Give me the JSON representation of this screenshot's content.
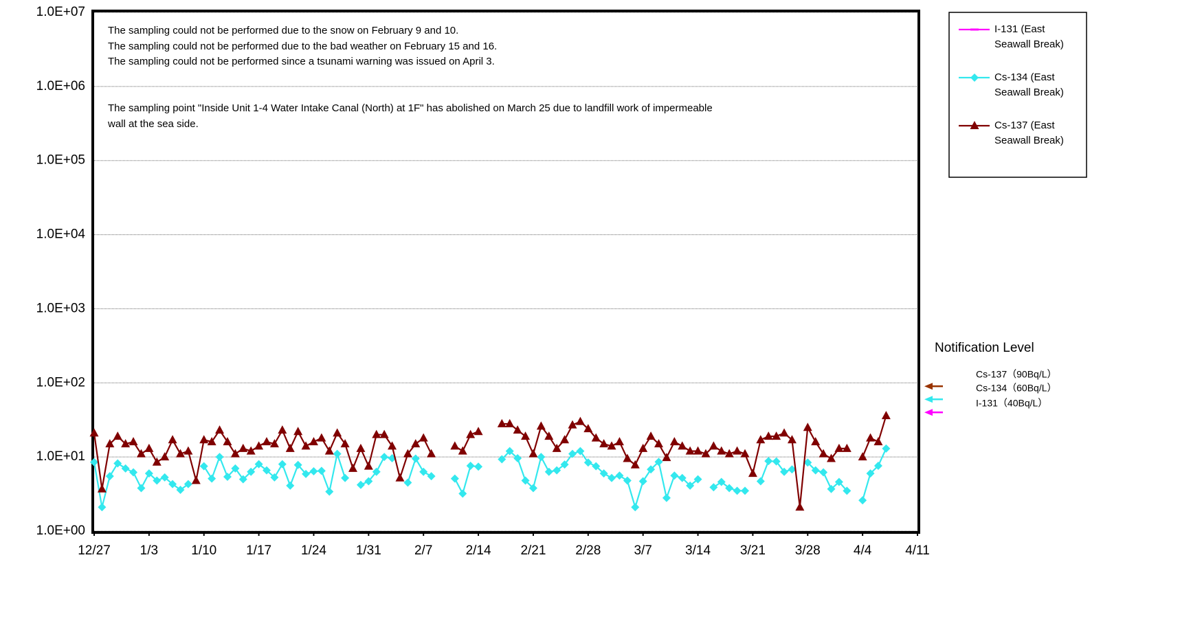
{
  "chart_data": {
    "type": "line",
    "log": true,
    "grid": true,
    "annotations": [
      "The sampling could not be performed due to the snow on February 9 and 10.",
      "The sampling could not be performed due to the bad weather on February 15 and 16.",
      "The sampling could not be performed since a tsunami warning was issued on April 3.",
      "The sampling point \"Inside Unit 1-4 Water Intake Canal (North) at 1F\" has abolished on March 25 due to landfill work of impermeable",
      "wall at the sea side."
    ],
    "categories": [
      "12/27",
      null,
      null,
      null,
      null,
      null,
      null,
      "1/3",
      null,
      null,
      null,
      null,
      null,
      null,
      "1/10",
      null,
      null,
      null,
      null,
      null,
      null,
      "1/17",
      null,
      null,
      null,
      null,
      null,
      null,
      "1/24",
      null,
      null,
      null,
      null,
      null,
      null,
      "1/31",
      null,
      null,
      null,
      null,
      null,
      null,
      "2/7",
      null,
      null,
      null,
      null,
      null,
      null,
      "2/14",
      null,
      null,
      null,
      null,
      null,
      null,
      "2/21",
      null,
      null,
      null,
      null,
      null,
      null,
      "2/28",
      null,
      null,
      null,
      null,
      null,
      null,
      "3/7",
      null,
      null,
      null,
      null,
      null,
      null,
      "3/14",
      null,
      null,
      null,
      null,
      null,
      null,
      "3/21",
      null,
      null,
      null,
      null,
      null,
      null,
      "3/28",
      null,
      null,
      null,
      null,
      null,
      null,
      "4/4",
      null,
      null,
      null,
      null,
      null,
      null,
      "4/11"
    ],
    "ylim": [
      1,
      10000000
    ],
    "yticks": [
      {
        "value": 1,
        "label": "1.0E+00"
      },
      {
        "value": 10,
        "label": "1.0E+01"
      },
      {
        "value": 100,
        "label": "1.0E+02"
      },
      {
        "value": 1000,
        "label": "1.0E+03"
      },
      {
        "value": 10000,
        "label": "1.0E+04"
      },
      {
        "value": 100000,
        "label": "1.0E+05"
      },
      {
        "value": 1000000,
        "label": "1.0E+06"
      },
      {
        "value": 10000000,
        "label": "1.0E+07"
      }
    ],
    "series": [
      {
        "name": "I-131 (East Seawall Break)",
        "color": "#ff00ff",
        "marker": "dash",
        "values": [
          null,
          null,
          null,
          null,
          null,
          null,
          null,
          null,
          null,
          null,
          null,
          null,
          null,
          null,
          null,
          null,
          null,
          null,
          null,
          null,
          null,
          null,
          null,
          null,
          null,
          null,
          null,
          null,
          null,
          null,
          null,
          null,
          null,
          null,
          null,
          null,
          null,
          null,
          null,
          null,
          null,
          null,
          null,
          null,
          null,
          null,
          null,
          null,
          null,
          null,
          null,
          null,
          null,
          null,
          null,
          null,
          null,
          null,
          null,
          null,
          null,
          null,
          null,
          null,
          null,
          null,
          null,
          null,
          null,
          null,
          null,
          null,
          null,
          null,
          null,
          null,
          null,
          null,
          null,
          null,
          null,
          null,
          null,
          null,
          null,
          null,
          null,
          null,
          null,
          null,
          null,
          null,
          null,
          null,
          null,
          null,
          null,
          null,
          null,
          null,
          null,
          null,
          null,
          null,
          null,
          null
        ]
      },
      {
        "name": "Cs-134 (East Seawall Break)",
        "color": "#33e8ee",
        "marker": "diamond",
        "values": [
          8.5,
          2.1,
          5.5,
          8.2,
          7,
          6.2,
          3.8,
          6,
          4.8,
          5.3,
          4.3,
          3.6,
          4.3,
          null,
          7.5,
          5.1,
          10,
          5.4,
          7,
          5,
          6.3,
          8,
          6.6,
          5.3,
          8,
          4.1,
          7.8,
          5.9,
          6.4,
          6.5,
          3.4,
          11,
          5.2,
          null,
          4.2,
          4.7,
          6.3,
          10,
          9.6,
          null,
          4.5,
          9.5,
          6.3,
          5.5,
          null,
          null,
          5.1,
          3.2,
          7.6,
          7.4,
          null,
          null,
          9.3,
          12,
          9.6,
          4.8,
          3.8,
          10,
          6.3,
          6.6,
          7.9,
          11,
          12,
          8.4,
          7.5,
          6,
          5.2,
          5.6,
          4.8,
          2.1,
          4.7,
          6.8,
          8.6,
          2.8,
          5.6,
          5.2,
          4.1,
          5,
          null,
          3.9,
          4.6,
          3.8,
          3.5,
          3.5,
          null,
          4.7,
          8.8,
          8.7,
          6.3,
          6.8,
          null,
          8.4,
          6.6,
          6.2,
          3.7,
          4.6,
          3.5,
          null,
          2.6,
          6,
          7.6,
          13,
          null,
          null,
          null,
          null
        ]
      },
      {
        "name": "Cs-137 (East Seawall Break)",
        "color": "#800000",
        "marker": "triangle",
        "values": [
          21,
          3.7,
          15,
          19,
          15,
          16,
          11,
          13,
          8.5,
          10,
          17,
          11,
          12,
          4.8,
          17,
          16,
          23,
          16,
          11,
          13,
          12,
          14,
          16,
          15,
          23,
          13,
          22,
          14,
          16,
          18,
          12,
          21,
          15,
          7,
          13,
          7.5,
          20,
          20,
          14,
          5.2,
          11,
          15,
          18,
          11,
          null,
          null,
          14,
          12,
          20,
          22,
          null,
          null,
          28,
          28,
          23,
          19,
          11,
          26,
          19,
          13,
          17,
          27,
          30,
          24,
          18,
          15,
          14,
          16,
          9.5,
          7.8,
          13,
          19,
          15,
          9.8,
          16,
          14,
          12,
          12,
          11,
          14,
          12,
          11,
          12,
          11,
          6,
          17,
          19,
          19,
          21,
          17,
          2.1,
          25,
          16,
          11,
          9.5,
          13,
          13,
          null,
          10,
          18,
          16,
          36,
          null,
          null,
          null,
          null
        ]
      }
    ],
    "notification": {
      "title": "Notification Level",
      "levels": [
        {
          "label": "Cs-137（90Bq/L）",
          "value": 90,
          "color": "#993300"
        },
        {
          "label": "Cs-134（60Bq/L）",
          "value": 60,
          "color": "#33e8ee"
        },
        {
          "label": "I-131（40Bq/L）",
          "value": 40,
          "color": "#ff00ff"
        }
      ]
    }
  }
}
